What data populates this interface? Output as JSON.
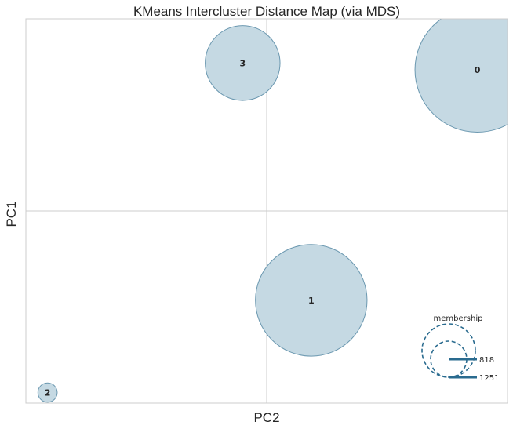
{
  "chart_data": {
    "type": "scatter",
    "title": "KMeans Intercluster Distance Map (via MDS)",
    "xlabel": "PC2",
    "ylabel": "PC1",
    "grid": true,
    "xlim": [
      -1,
      1
    ],
    "ylim": [
      -1,
      1
    ],
    "clusters": [
      {
        "label": "0",
        "x": 0.875,
        "y": 0.735,
        "size": 1251
      },
      {
        "label": "1",
        "x": 0.185,
        "y": -0.465,
        "size": 1000
      },
      {
        "label": "2",
        "x": -0.91,
        "y": -0.945,
        "size": 30
      },
      {
        "label": "3",
        "x": -0.1,
        "y": 0.77,
        "size": 450
      }
    ],
    "legend": {
      "title": "membership",
      "position": "lower-right",
      "values": [
        "818",
        "1251"
      ]
    },
    "colors": {
      "fill": "#c5d9e3",
      "stroke": "#6b98b0",
      "legend": "#2a6b8f",
      "grid": "#cccccc"
    }
  }
}
